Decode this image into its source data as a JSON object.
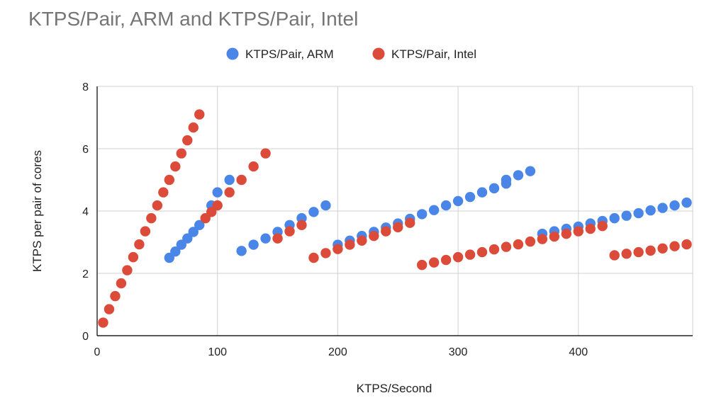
{
  "chart_data": {
    "type": "scatter",
    "title": "KTPS/Pair, ARM and KTPS/Pair, Intel",
    "xlabel": "KTPS/Second",
    "ylabel": "KTPS per pair of cores",
    "xlim": [
      0,
      495
    ],
    "ylim": [
      0,
      8
    ],
    "x_ticks": [
      0,
      100,
      200,
      300,
      400
    ],
    "y_ticks": [
      0,
      2,
      4,
      6,
      8
    ],
    "grid": true,
    "legend_position": "top-center",
    "series": [
      {
        "name": "KTPS/Pair, ARM",
        "color": "#4a86e8",
        "points": [
          [
            60,
            2.5
          ],
          [
            65,
            2.7
          ],
          [
            70,
            2.92
          ],
          [
            75,
            3.12
          ],
          [
            80,
            3.33
          ],
          [
            85,
            3.55
          ],
          [
            95,
            4.18
          ],
          [
            100,
            4.6
          ],
          [
            110,
            5.0
          ],
          [
            120,
            2.72
          ],
          [
            130,
            2.92
          ],
          [
            140,
            3.12
          ],
          [
            150,
            3.33
          ],
          [
            160,
            3.55
          ],
          [
            170,
            3.77
          ],
          [
            180,
            3.97
          ],
          [
            190,
            4.18
          ],
          [
            200,
            2.92
          ],
          [
            210,
            3.05
          ],
          [
            220,
            3.2
          ],
          [
            230,
            3.33
          ],
          [
            240,
            3.47
          ],
          [
            250,
            3.6
          ],
          [
            260,
            3.75
          ],
          [
            270,
            3.9
          ],
          [
            280,
            4.03
          ],
          [
            290,
            4.18
          ],
          [
            300,
            4.32
          ],
          [
            310,
            4.45
          ],
          [
            320,
            4.6
          ],
          [
            330,
            4.73
          ],
          [
            340,
            4.88
          ],
          [
            340,
            5.0
          ],
          [
            350,
            5.15
          ],
          [
            360,
            5.28
          ],
          [
            370,
            3.27
          ],
          [
            380,
            3.35
          ],
          [
            390,
            3.43
          ],
          [
            400,
            3.5
          ],
          [
            410,
            3.6
          ],
          [
            420,
            3.68
          ],
          [
            430,
            3.77
          ],
          [
            440,
            3.85
          ],
          [
            450,
            3.93
          ],
          [
            460,
            4.02
          ],
          [
            470,
            4.1
          ],
          [
            480,
            4.18
          ],
          [
            490,
            4.27
          ]
        ]
      },
      {
        "name": "KTPS/Pair, Intel",
        "color": "#dc4b3a",
        "points": [
          [
            5,
            0.42
          ],
          [
            10,
            0.85
          ],
          [
            15,
            1.27
          ],
          [
            20,
            1.68
          ],
          [
            25,
            2.1
          ],
          [
            30,
            2.52
          ],
          [
            35,
            2.93
          ],
          [
            40,
            3.35
          ],
          [
            45,
            3.77
          ],
          [
            50,
            4.18
          ],
          [
            55,
            4.6
          ],
          [
            60,
            5.0
          ],
          [
            65,
            5.43
          ],
          [
            70,
            5.85
          ],
          [
            75,
            6.27
          ],
          [
            80,
            6.68
          ],
          [
            85,
            7.1
          ],
          [
            90,
            3.77
          ],
          [
            95,
            3.97
          ],
          [
            100,
            4.18
          ],
          [
            110,
            4.6
          ],
          [
            120,
            5.0
          ],
          [
            130,
            5.43
          ],
          [
            140,
            5.85
          ],
          [
            150,
            3.12
          ],
          [
            160,
            3.35
          ],
          [
            170,
            3.55
          ],
          [
            180,
            2.5
          ],
          [
            190,
            2.65
          ],
          [
            200,
            2.78
          ],
          [
            210,
            2.92
          ],
          [
            220,
            3.05
          ],
          [
            230,
            3.2
          ],
          [
            240,
            3.35
          ],
          [
            250,
            3.48
          ],
          [
            260,
            3.62
          ],
          [
            270,
            2.27
          ],
          [
            280,
            2.35
          ],
          [
            290,
            2.43
          ],
          [
            300,
            2.52
          ],
          [
            310,
            2.6
          ],
          [
            320,
            2.68
          ],
          [
            330,
            2.77
          ],
          [
            340,
            2.85
          ],
          [
            350,
            2.93
          ],
          [
            360,
            3.02
          ],
          [
            370,
            3.1
          ],
          [
            380,
            3.18
          ],
          [
            390,
            3.27
          ],
          [
            400,
            3.35
          ],
          [
            410,
            3.43
          ],
          [
            420,
            3.52
          ],
          [
            430,
            2.58
          ],
          [
            440,
            2.63
          ],
          [
            450,
            2.68
          ],
          [
            460,
            2.73
          ],
          [
            470,
            2.8
          ],
          [
            480,
            2.87
          ],
          [
            490,
            2.93
          ]
        ]
      }
    ]
  }
}
